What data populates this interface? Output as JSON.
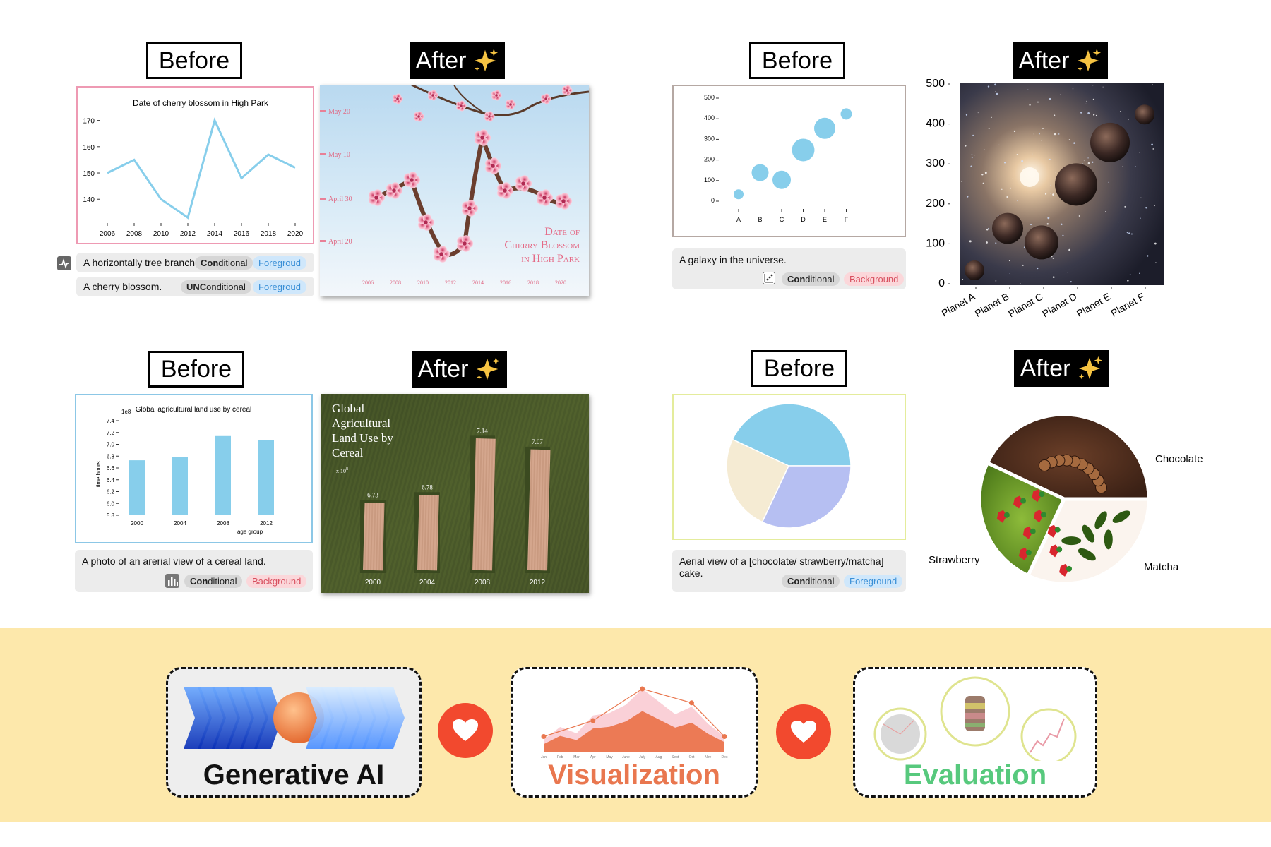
{
  "labels": {
    "before": "Before",
    "after": "After"
  },
  "panels": {
    "cherry": {
      "before_chart": {
        "title": "Date of cherry blossom in High Park",
        "x": [
          "2006",
          "2008",
          "2010",
          "2012",
          "2014",
          "2016",
          "2018",
          "2020"
        ],
        "y_ticks": [
          "170",
          "160",
          "150",
          "140"
        ],
        "values": [
          150,
          155,
          140,
          133,
          170,
          148,
          157,
          152
        ],
        "ylim": [
          132,
          175
        ],
        "color": "#87ceeb"
      },
      "captions": [
        {
          "text": "A horizontally tree branch.",
          "mode": "Conditional",
          "mode_bold": "Con",
          "mode_rest": "ditional",
          "layer": "Foregroud"
        },
        {
          "text": "A cherry blossom.",
          "mode": "UNConditional",
          "mode_bold": "UNC",
          "mode_rest": "onditional",
          "layer": "Foregroud"
        }
      ],
      "after": {
        "title_lines": [
          "Date of",
          "Cherry Blossom",
          "in High Park"
        ],
        "y_labels": [
          "May 20",
          "May 10",
          "April 30",
          "April 20"
        ],
        "x_labels": [
          "2006",
          "2008",
          "2010",
          "2012",
          "2014",
          "2016",
          "2018",
          "2020"
        ]
      }
    },
    "galaxy": {
      "before_chart": {
        "type": "scatter",
        "categories": [
          "A",
          "B",
          "C",
          "D",
          "E",
          "F"
        ],
        "y_ticks": [
          "500",
          "400",
          "300",
          "200",
          "100",
          "0"
        ],
        "values": [
          30,
          135,
          100,
          245,
          350,
          420
        ],
        "sizes": [
          7,
          12,
          13,
          16,
          15,
          8
        ],
        "ylim": [
          0,
          500
        ],
        "color": "#87ceeb"
      },
      "caption": {
        "text": "A galaxy in the universe.",
        "mode_bold": "Con",
        "mode_rest": "ditional",
        "layer": "Background"
      },
      "after": {
        "y_ticks": [
          "500",
          "400",
          "300",
          "200",
          "100",
          "0"
        ],
        "x_labels": [
          "Planet A",
          "Planet B",
          "Planet C",
          "Planet D",
          "Planet E",
          "Planet F"
        ]
      }
    },
    "cereal": {
      "before_chart": {
        "type": "bar",
        "title": "Global agricultural land use by cereal",
        "scale_note": "1e8",
        "categories": [
          "2000",
          "2004",
          "2008",
          "2012"
        ],
        "values": [
          6.73,
          6.78,
          7.14,
          7.07
        ],
        "y_ticks": [
          "7.4",
          "7.2",
          "7.0",
          "6.8",
          "6.6",
          "6.4",
          "6.2",
          "6.0",
          "5.8"
        ],
        "ylim": [
          5.8,
          7.4
        ],
        "xlabel": "age group",
        "ylabel": "time hours",
        "color": "#87ceeb"
      },
      "caption": {
        "text": "A photo of an arerial view of a cereal land.",
        "mode_bold": "Con",
        "mode_rest": "ditional",
        "layer": "Background"
      },
      "after": {
        "title_lines": [
          "Global",
          "Agricultural",
          "Land Use by",
          "Cereal"
        ],
        "scale_note": "x 10",
        "scale_exp": "8",
        "value_labels": [
          "6.73",
          "6.78",
          "7.14",
          "7.07"
        ],
        "x_labels": [
          "2000",
          "2004",
          "2008",
          "2012"
        ]
      }
    },
    "cake": {
      "before_chart": {
        "type": "pie",
        "slices": [
          {
            "value": 43,
            "color": "#87ceeb"
          },
          {
            "value": 25,
            "color": "#f5ebd3"
          },
          {
            "value": 32,
            "color": "#b6bff2"
          }
        ]
      },
      "caption": {
        "line1": "Aerial view of a [chocolate/ strawberry/matcha]",
        "line2": "cake.",
        "mode_bold": "Con",
        "mode_rest": "ditional",
        "layer": "Foreground"
      },
      "after": {
        "labels": {
          "chocolate": "Chocolate",
          "strawberry": "Strawberry",
          "matcha": "Matcha"
        }
      }
    }
  },
  "bottom": {
    "gen_ai": "Generative AI",
    "vis": "Visualization",
    "eval": "Evaluation",
    "months": [
      "Jan",
      "Feb",
      "Mar",
      "Apr",
      "May",
      "June",
      "July",
      "Aug",
      "Sept",
      "Oct",
      "Nov",
      "Dec"
    ],
    "colors": {
      "vis": "#e9774f",
      "eval": "#57c97d",
      "heart": "#f2492e"
    }
  }
}
